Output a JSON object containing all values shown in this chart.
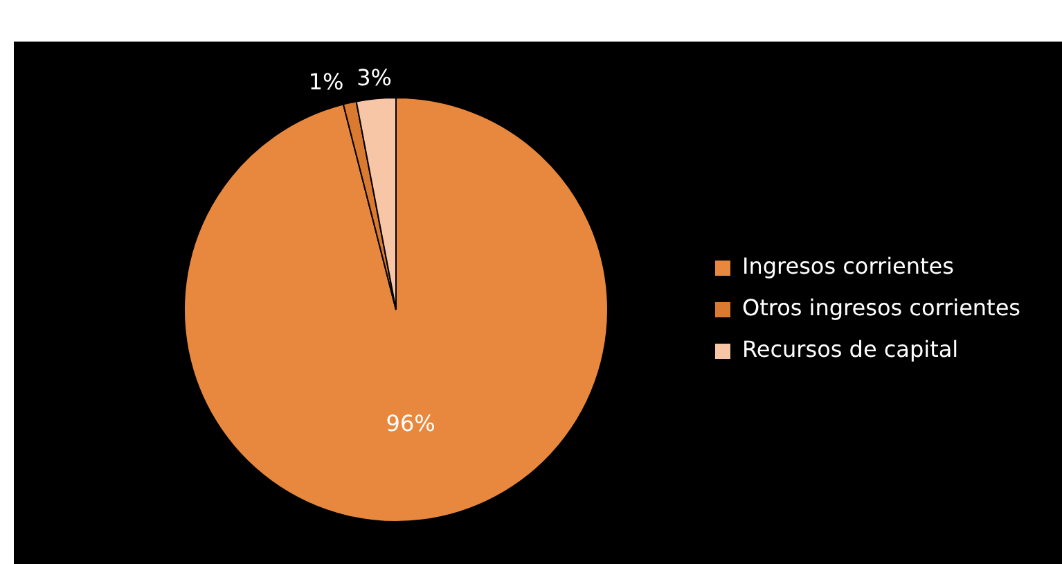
{
  "chart_data": {
    "type": "pie",
    "categories": [
      "Ingresos corrientes",
      "Otros ingresos corrientes",
      "Recursos de capital"
    ],
    "values": [
      96,
      1,
      3
    ],
    "value_labels": [
      "96%",
      "1%",
      "3%"
    ],
    "colors": [
      "#e8883e",
      "#d97a30",
      "#f6c6a6"
    ],
    "legend": "right"
  }
}
